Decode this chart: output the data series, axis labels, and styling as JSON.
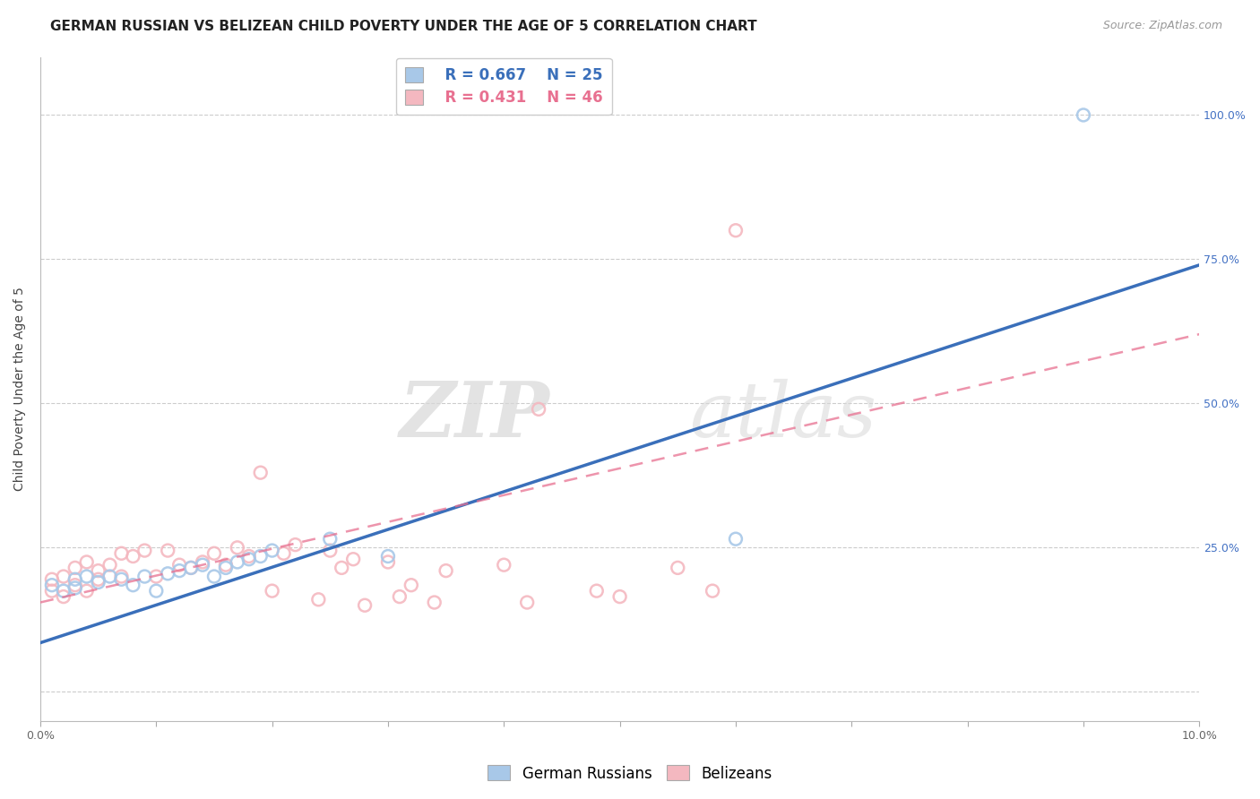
{
  "title": "GERMAN RUSSIAN VS BELIZEAN CHILD POVERTY UNDER THE AGE OF 5 CORRELATION CHART",
  "source": "Source: ZipAtlas.com",
  "ylabel": "Child Poverty Under the Age of 5",
  "xlim": [
    0.0,
    0.1
  ],
  "ylim": [
    -0.05,
    1.1
  ],
  "ytick_positions": [
    0.0,
    0.25,
    0.5,
    0.75,
    1.0
  ],
  "ytick_labels": [
    "",
    "25.0%",
    "50.0%",
    "75.0%",
    "100.0%"
  ],
  "legend_r_blue": "R = 0.667",
  "legend_n_blue": "N = 25",
  "legend_r_pink": "R = 0.431",
  "legend_n_pink": "N = 46",
  "watermark_zip": "ZIP",
  "watermark_atlas": "atlas",
  "blue_scatter_color": "#a8c8e8",
  "pink_scatter_color": "#f4b8c0",
  "blue_line_color": "#3a6fba",
  "pink_line_color": "#e87090",
  "title_fontsize": 11,
  "source_fontsize": 9,
  "label_fontsize": 10,
  "tick_fontsize": 9,
  "legend_fontsize": 12,
  "german_russian_x": [
    0.001,
    0.002,
    0.003,
    0.003,
    0.004,
    0.005,
    0.006,
    0.007,
    0.008,
    0.009,
    0.01,
    0.011,
    0.012,
    0.013,
    0.014,
    0.015,
    0.016,
    0.017,
    0.018,
    0.019,
    0.02,
    0.025,
    0.03,
    0.06,
    0.09
  ],
  "german_russian_y": [
    0.185,
    0.175,
    0.18,
    0.195,
    0.2,
    0.19,
    0.2,
    0.195,
    0.185,
    0.2,
    0.175,
    0.205,
    0.21,
    0.215,
    0.22,
    0.2,
    0.215,
    0.225,
    0.23,
    0.235,
    0.245,
    0.265,
    0.235,
    0.265,
    1.0
  ],
  "belizean_x": [
    0.001,
    0.001,
    0.002,
    0.002,
    0.003,
    0.003,
    0.004,
    0.004,
    0.005,
    0.005,
    0.006,
    0.007,
    0.007,
    0.008,
    0.009,
    0.01,
    0.011,
    0.012,
    0.013,
    0.014,
    0.015,
    0.016,
    0.017,
    0.018,
    0.019,
    0.02,
    0.021,
    0.022,
    0.024,
    0.025,
    0.026,
    0.027,
    0.028,
    0.03,
    0.031,
    0.032,
    0.034,
    0.035,
    0.04,
    0.042,
    0.043,
    0.048,
    0.05,
    0.055,
    0.058,
    0.06
  ],
  "belizean_y": [
    0.175,
    0.195,
    0.165,
    0.2,
    0.185,
    0.215,
    0.175,
    0.225,
    0.195,
    0.21,
    0.22,
    0.2,
    0.24,
    0.235,
    0.245,
    0.2,
    0.245,
    0.22,
    0.215,
    0.225,
    0.24,
    0.22,
    0.25,
    0.235,
    0.38,
    0.175,
    0.24,
    0.255,
    0.16,
    0.245,
    0.215,
    0.23,
    0.15,
    0.225,
    0.165,
    0.185,
    0.155,
    0.21,
    0.22,
    0.155,
    0.49,
    0.175,
    0.165,
    0.215,
    0.175,
    0.8
  ],
  "blue_line_intercept": 0.085,
  "blue_line_slope": 6.55,
  "pink_line_intercept": 0.155,
  "pink_line_slope": 4.65
}
